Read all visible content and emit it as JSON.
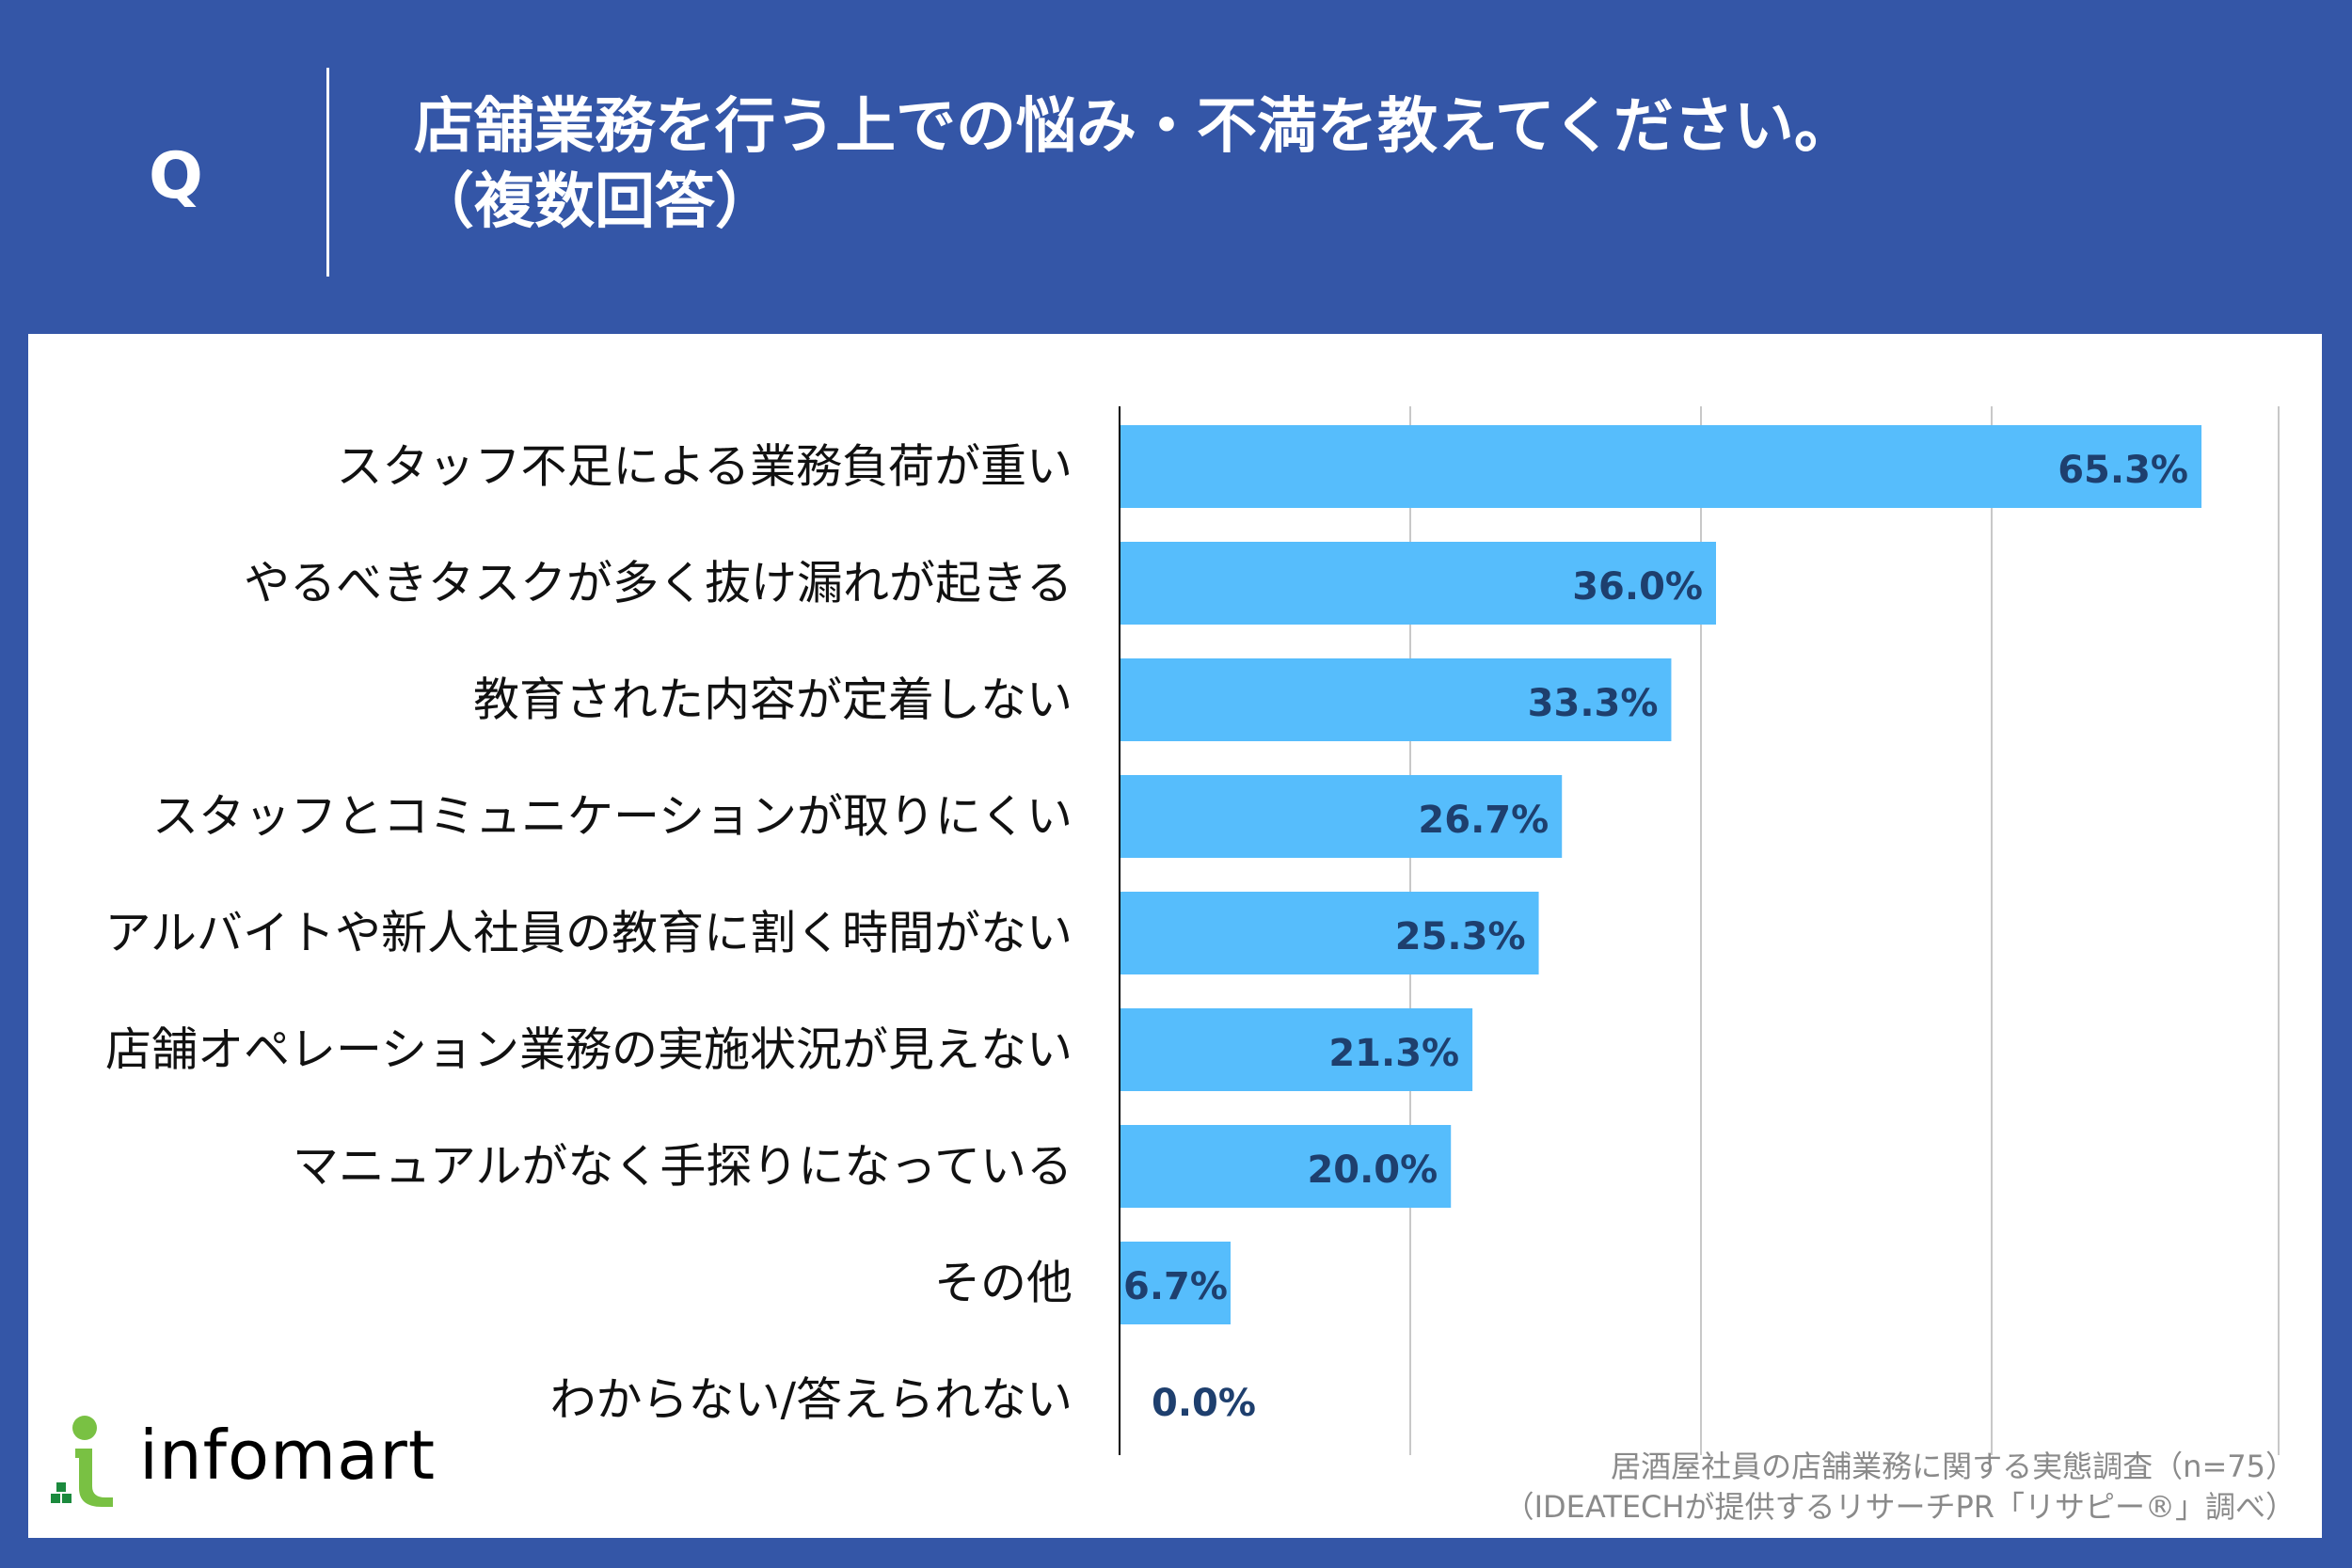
{
  "header": {
    "q_mark": "Q",
    "title_line1": "店舗業務を行う上での悩み・不満を教えてください。",
    "title_line2": "（複数回答）"
  },
  "colors": {
    "background": "#3456a7",
    "bar": "#56bdfc",
    "value_text": "#1e3f6e",
    "panel": "#ffffff"
  },
  "chart_data": {
    "type": "bar",
    "orientation": "horizontal",
    "categories": [
      "スタッフ不足による業務負荷が重い",
      "やるべきタスクが多く抜け漏れが起きる",
      "教育された内容が定着しない",
      "スタッフとコミュニケーションが取りにくい",
      "アルバイトや新人社員の教育に割く時間がない",
      "店舗オペレーション業務の実施状況が見えない",
      "マニュアルがなく手探りになっている",
      "その他",
      "わからない/答えられない"
    ],
    "values": [
      65.3,
      36.0,
      33.3,
      26.7,
      25.3,
      21.3,
      20.0,
      6.7,
      0.0
    ],
    "value_labels": [
      "65.3%",
      "36.0%",
      "33.3%",
      "26.7%",
      "25.3%",
      "21.3%",
      "20.0%",
      "6.7%",
      "0.0%"
    ],
    "xlim": [
      0,
      70
    ],
    "grid": true
  },
  "brand": {
    "name": "infomart"
  },
  "source": {
    "line1": "居酒屋社員の店舗業務に関する実態調査（n=75）",
    "line2": "（IDEATECHが提供するリサーチPR「リサピー®」調べ）"
  }
}
